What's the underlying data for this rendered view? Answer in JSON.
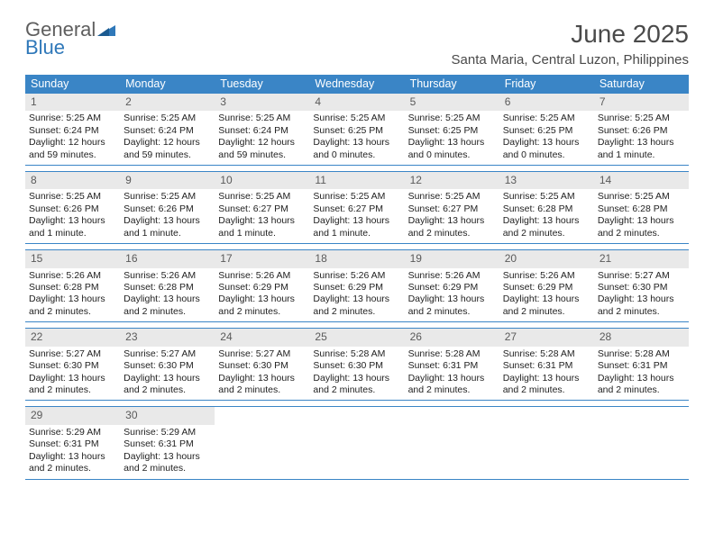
{
  "logo": {
    "word1": "General",
    "word2": "Blue"
  },
  "title": "June 2025",
  "location": "Santa Maria, Central Luzon, Philippines",
  "colors": {
    "header_bg": "#3a85c6",
    "header_text": "#ffffff",
    "daynum_bg": "#e9e9e9",
    "rule": "#3a85c6",
    "text": "#333333",
    "logo_gray": "#5e5e5e",
    "logo_blue": "#2f78b9"
  },
  "typography": {
    "title_fontsize": 28,
    "location_fontsize": 15,
    "weekday_fontsize": 12.5,
    "body_fontsize": 10.5
  },
  "weekdays": [
    "Sunday",
    "Monday",
    "Tuesday",
    "Wednesday",
    "Thursday",
    "Friday",
    "Saturday"
  ],
  "weeks": [
    [
      {
        "n": "1",
        "sr": "Sunrise: 5:25 AM",
        "ss": "Sunset: 6:24 PM",
        "dl": "Daylight: 12 hours and 59 minutes."
      },
      {
        "n": "2",
        "sr": "Sunrise: 5:25 AM",
        "ss": "Sunset: 6:24 PM",
        "dl": "Daylight: 12 hours and 59 minutes."
      },
      {
        "n": "3",
        "sr": "Sunrise: 5:25 AM",
        "ss": "Sunset: 6:24 PM",
        "dl": "Daylight: 12 hours and 59 minutes."
      },
      {
        "n": "4",
        "sr": "Sunrise: 5:25 AM",
        "ss": "Sunset: 6:25 PM",
        "dl": "Daylight: 13 hours and 0 minutes."
      },
      {
        "n": "5",
        "sr": "Sunrise: 5:25 AM",
        "ss": "Sunset: 6:25 PM",
        "dl": "Daylight: 13 hours and 0 minutes."
      },
      {
        "n": "6",
        "sr": "Sunrise: 5:25 AM",
        "ss": "Sunset: 6:25 PM",
        "dl": "Daylight: 13 hours and 0 minutes."
      },
      {
        "n": "7",
        "sr": "Sunrise: 5:25 AM",
        "ss": "Sunset: 6:26 PM",
        "dl": "Daylight: 13 hours and 1 minute."
      }
    ],
    [
      {
        "n": "8",
        "sr": "Sunrise: 5:25 AM",
        "ss": "Sunset: 6:26 PM",
        "dl": "Daylight: 13 hours and 1 minute."
      },
      {
        "n": "9",
        "sr": "Sunrise: 5:25 AM",
        "ss": "Sunset: 6:26 PM",
        "dl": "Daylight: 13 hours and 1 minute."
      },
      {
        "n": "10",
        "sr": "Sunrise: 5:25 AM",
        "ss": "Sunset: 6:27 PM",
        "dl": "Daylight: 13 hours and 1 minute."
      },
      {
        "n": "11",
        "sr": "Sunrise: 5:25 AM",
        "ss": "Sunset: 6:27 PM",
        "dl": "Daylight: 13 hours and 1 minute."
      },
      {
        "n": "12",
        "sr": "Sunrise: 5:25 AM",
        "ss": "Sunset: 6:27 PM",
        "dl": "Daylight: 13 hours and 2 minutes."
      },
      {
        "n": "13",
        "sr": "Sunrise: 5:25 AM",
        "ss": "Sunset: 6:28 PM",
        "dl": "Daylight: 13 hours and 2 minutes."
      },
      {
        "n": "14",
        "sr": "Sunrise: 5:25 AM",
        "ss": "Sunset: 6:28 PM",
        "dl": "Daylight: 13 hours and 2 minutes."
      }
    ],
    [
      {
        "n": "15",
        "sr": "Sunrise: 5:26 AM",
        "ss": "Sunset: 6:28 PM",
        "dl": "Daylight: 13 hours and 2 minutes."
      },
      {
        "n": "16",
        "sr": "Sunrise: 5:26 AM",
        "ss": "Sunset: 6:28 PM",
        "dl": "Daylight: 13 hours and 2 minutes."
      },
      {
        "n": "17",
        "sr": "Sunrise: 5:26 AM",
        "ss": "Sunset: 6:29 PM",
        "dl": "Daylight: 13 hours and 2 minutes."
      },
      {
        "n": "18",
        "sr": "Sunrise: 5:26 AM",
        "ss": "Sunset: 6:29 PM",
        "dl": "Daylight: 13 hours and 2 minutes."
      },
      {
        "n": "19",
        "sr": "Sunrise: 5:26 AM",
        "ss": "Sunset: 6:29 PM",
        "dl": "Daylight: 13 hours and 2 minutes."
      },
      {
        "n": "20",
        "sr": "Sunrise: 5:26 AM",
        "ss": "Sunset: 6:29 PM",
        "dl": "Daylight: 13 hours and 2 minutes."
      },
      {
        "n": "21",
        "sr": "Sunrise: 5:27 AM",
        "ss": "Sunset: 6:30 PM",
        "dl": "Daylight: 13 hours and 2 minutes."
      }
    ],
    [
      {
        "n": "22",
        "sr": "Sunrise: 5:27 AM",
        "ss": "Sunset: 6:30 PM",
        "dl": "Daylight: 13 hours and 2 minutes."
      },
      {
        "n": "23",
        "sr": "Sunrise: 5:27 AM",
        "ss": "Sunset: 6:30 PM",
        "dl": "Daylight: 13 hours and 2 minutes."
      },
      {
        "n": "24",
        "sr": "Sunrise: 5:27 AM",
        "ss": "Sunset: 6:30 PM",
        "dl": "Daylight: 13 hours and 2 minutes."
      },
      {
        "n": "25",
        "sr": "Sunrise: 5:28 AM",
        "ss": "Sunset: 6:30 PM",
        "dl": "Daylight: 13 hours and 2 minutes."
      },
      {
        "n": "26",
        "sr": "Sunrise: 5:28 AM",
        "ss": "Sunset: 6:31 PM",
        "dl": "Daylight: 13 hours and 2 minutes."
      },
      {
        "n": "27",
        "sr": "Sunrise: 5:28 AM",
        "ss": "Sunset: 6:31 PM",
        "dl": "Daylight: 13 hours and 2 minutes."
      },
      {
        "n": "28",
        "sr": "Sunrise: 5:28 AM",
        "ss": "Sunset: 6:31 PM",
        "dl": "Daylight: 13 hours and 2 minutes."
      }
    ],
    [
      {
        "n": "29",
        "sr": "Sunrise: 5:29 AM",
        "ss": "Sunset: 6:31 PM",
        "dl": "Daylight: 13 hours and 2 minutes."
      },
      {
        "n": "30",
        "sr": "Sunrise: 5:29 AM",
        "ss": "Sunset: 6:31 PM",
        "dl": "Daylight: 13 hours and 2 minutes."
      },
      null,
      null,
      null,
      null,
      null
    ]
  ]
}
